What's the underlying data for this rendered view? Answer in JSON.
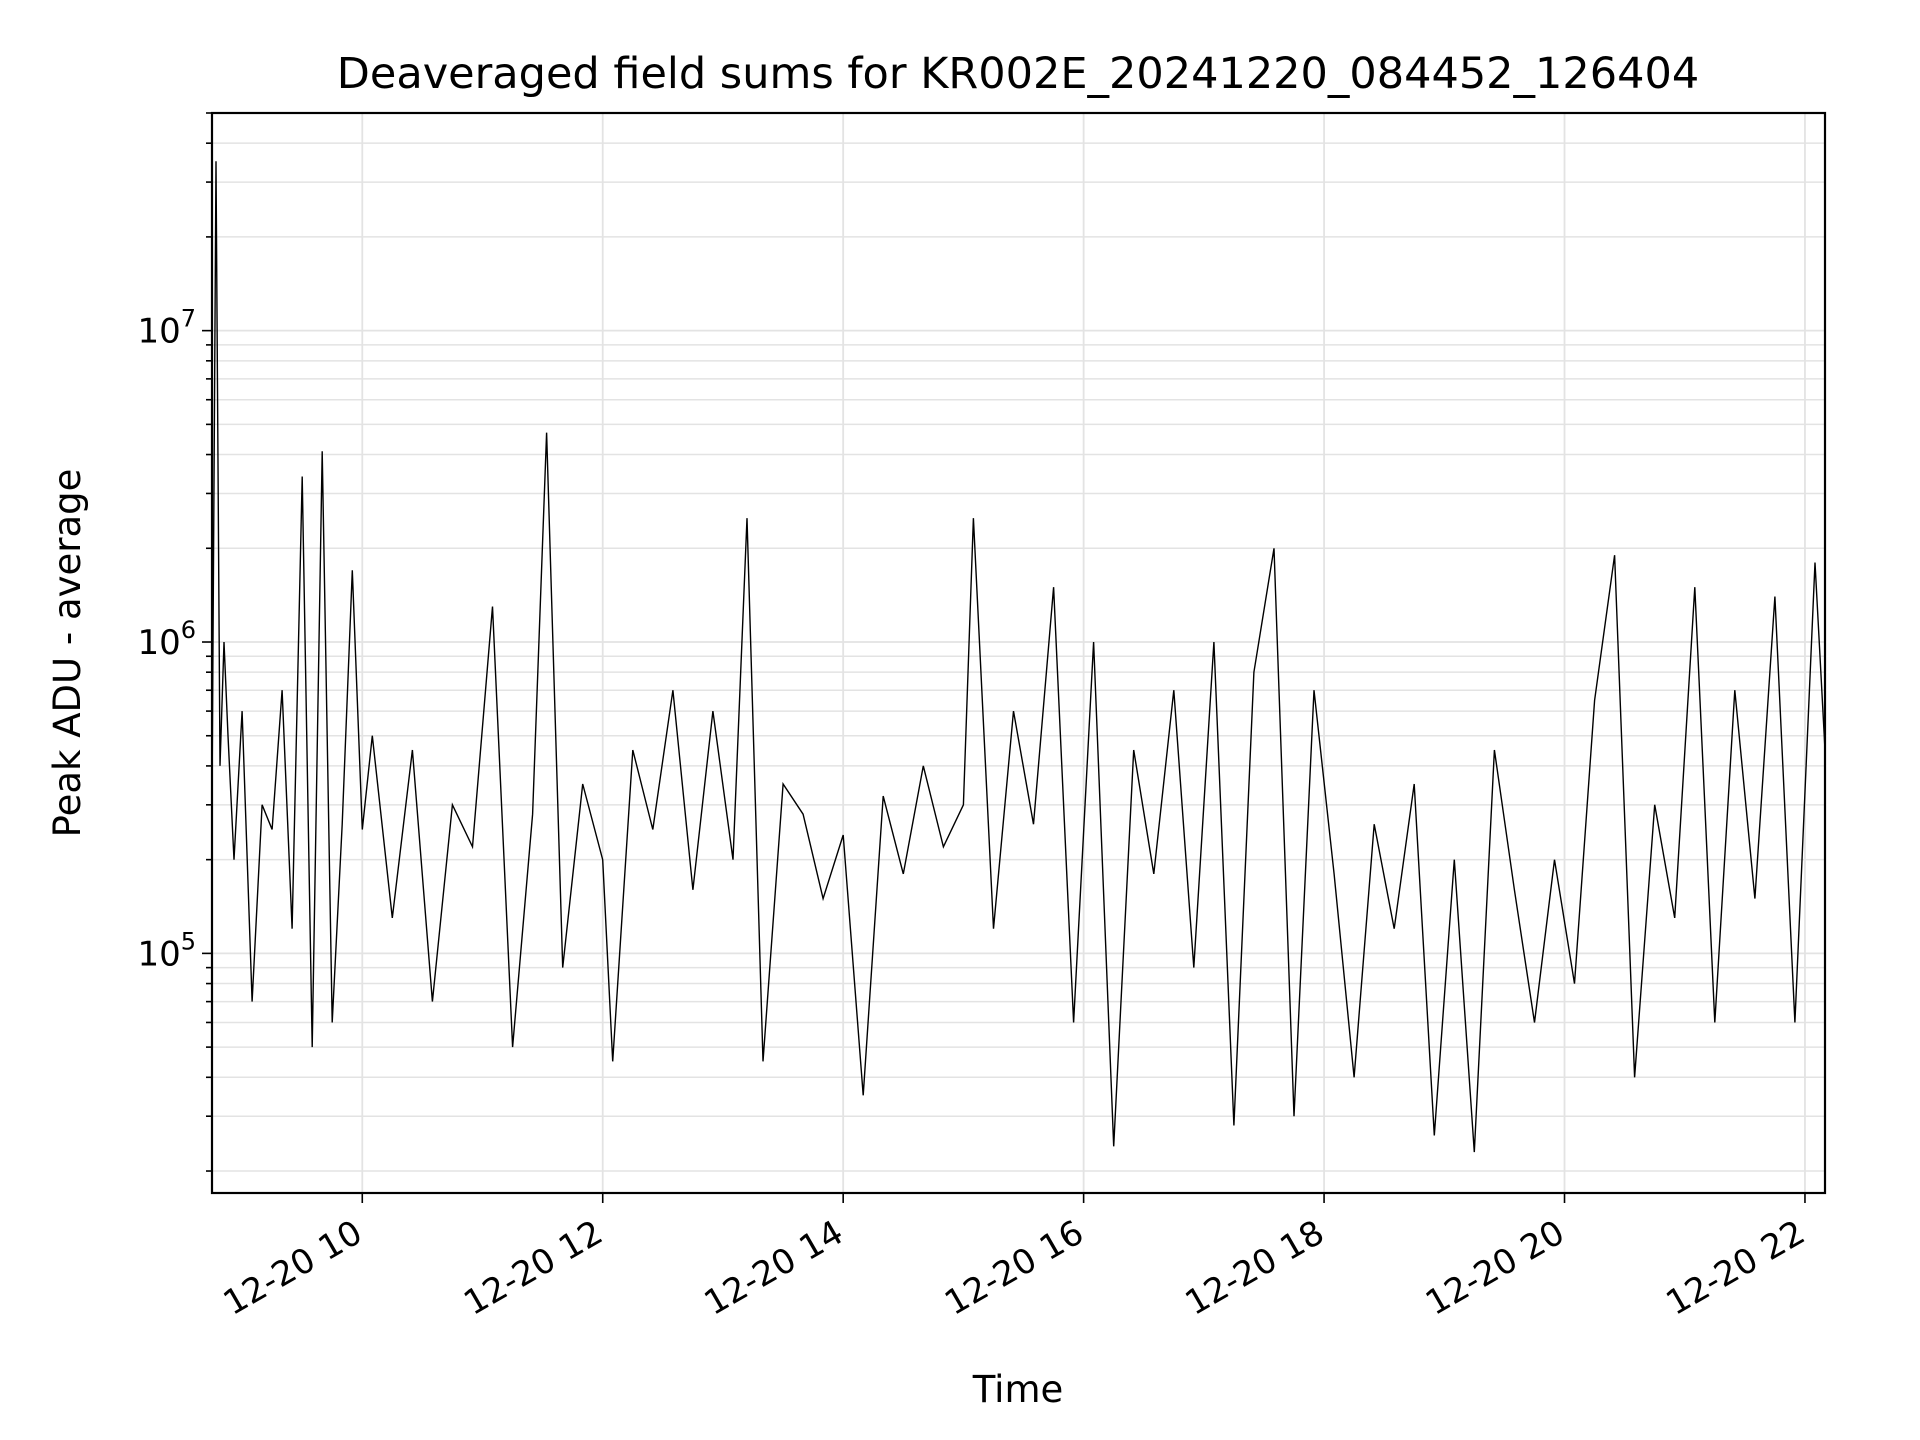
{
  "chart_data": {
    "type": "line",
    "title": "Deaveraged field sums for KR002E_20241220_084452_126404",
    "xlabel": "Time",
    "ylabel": "Peak ADU - average",
    "xscale": "time",
    "yscale": "log",
    "grid": true,
    "xlim": [
      "2024-12-20 08:45",
      "2024-12-20 22:10"
    ],
    "ylim": [
      17000,
      50000000
    ],
    "x_ticks": [
      "12-20 10",
      "12-20 12",
      "12-20 14",
      "12-20 16",
      "12-20 18",
      "12-20 20",
      "12-20 22"
    ],
    "y_ticks": [
      {
        "base": "10",
        "exp": "5",
        "value": 100000
      },
      {
        "base": "10",
        "exp": "6",
        "value": 1000000
      },
      {
        "base": "10",
        "exp": "7",
        "value": 10000000
      }
    ],
    "series": [
      {
        "color": "#000000",
        "x": [
          "2024-12-20 08:45",
          "2024-12-20 08:47",
          "2024-12-20 08:49",
          "2024-12-20 08:51",
          "2024-12-20 08:53",
          "2024-12-20 08:56",
          "2024-12-20 09:00",
          "2024-12-20 09:05",
          "2024-12-20 09:10",
          "2024-12-20 09:15",
          "2024-12-20 09:20",
          "2024-12-20 09:25",
          "2024-12-20 09:30",
          "2024-12-20 09:35",
          "2024-12-20 09:40",
          "2024-12-20 09:45",
          "2024-12-20 09:50",
          "2024-12-20 09:55",
          "2024-12-20 10:00",
          "2024-12-20 10:05",
          "2024-12-20 10:15",
          "2024-12-20 10:25",
          "2024-12-20 10:35",
          "2024-12-20 10:45",
          "2024-12-20 10:55",
          "2024-12-20 11:05",
          "2024-12-20 11:15",
          "2024-12-20 11:25",
          "2024-12-20 11:32",
          "2024-12-20 11:40",
          "2024-12-20 11:50",
          "2024-12-20 12:00",
          "2024-12-20 12:05",
          "2024-12-20 12:15",
          "2024-12-20 12:25",
          "2024-12-20 12:35",
          "2024-12-20 12:45",
          "2024-12-20 12:55",
          "2024-12-20 13:05",
          "2024-12-20 13:12",
          "2024-12-20 13:20",
          "2024-12-20 13:30",
          "2024-12-20 13:40",
          "2024-12-20 13:50",
          "2024-12-20 14:00",
          "2024-12-20 14:10",
          "2024-12-20 14:20",
          "2024-12-20 14:30",
          "2024-12-20 14:40",
          "2024-12-20 14:50",
          "2024-12-20 15:00",
          "2024-12-20 15:05",
          "2024-12-20 15:15",
          "2024-12-20 15:25",
          "2024-12-20 15:35",
          "2024-12-20 15:45",
          "2024-12-20 15:55",
          "2024-12-20 16:05",
          "2024-12-20 16:15",
          "2024-12-20 16:25",
          "2024-12-20 16:35",
          "2024-12-20 16:45",
          "2024-12-20 16:55",
          "2024-12-20 17:05",
          "2024-12-20 17:15",
          "2024-12-20 17:25",
          "2024-12-20 17:35",
          "2024-12-20 17:45",
          "2024-12-20 17:55",
          "2024-12-20 18:05",
          "2024-12-20 18:15",
          "2024-12-20 18:25",
          "2024-12-20 18:35",
          "2024-12-20 18:45",
          "2024-12-20 18:55",
          "2024-12-20 19:05",
          "2024-12-20 19:15",
          "2024-12-20 19:25",
          "2024-12-20 19:35",
          "2024-12-20 19:45",
          "2024-12-20 19:55",
          "2024-12-20 20:05",
          "2024-12-20 20:15",
          "2024-12-20 20:25",
          "2024-12-20 20:35",
          "2024-12-20 20:45",
          "2024-12-20 20:55",
          "2024-12-20 21:05",
          "2024-12-20 21:15",
          "2024-12-20 21:25",
          "2024-12-20 21:35",
          "2024-12-20 21:45",
          "2024-12-20 21:55",
          "2024-12-20 22:05",
          "2024-12-20 22:10"
        ],
        "y": [
          300000,
          35000000,
          400000,
          1000000,
          500000,
          200000,
          600000,
          70000,
          300000,
          250000,
          700000,
          120000,
          3400000,
          50000,
          4100000,
          60000,
          260000,
          1700000,
          250000,
          500000,
          130000,
          450000,
          70000,
          300000,
          220000,
          1300000,
          50000,
          280000,
          4700000,
          90000,
          350000,
          200000,
          45000,
          450000,
          250000,
          700000,
          160000,
          600000,
          200000,
          2500000,
          45000,
          350000,
          280000,
          150000,
          240000,
          35000,
          320000,
          180000,
          400000,
          220000,
          300000,
          2500000,
          120000,
          600000,
          260000,
          1500000,
          60000,
          1000000,
          24000,
          450000,
          180000,
          700000,
          90000,
          1000000,
          28000,
          800000,
          2000000,
          30000,
          700000,
          180000,
          40000,
          260000,
          120000,
          350000,
          26000,
          200000,
          23000,
          450000,
          160000,
          60000,
          200000,
          80000,
          650000,
          1900000,
          40000,
          300000,
          130000,
          1500000,
          60000,
          700000,
          150000,
          1400000,
          60000,
          1800000,
          450000
        ]
      }
    ]
  }
}
